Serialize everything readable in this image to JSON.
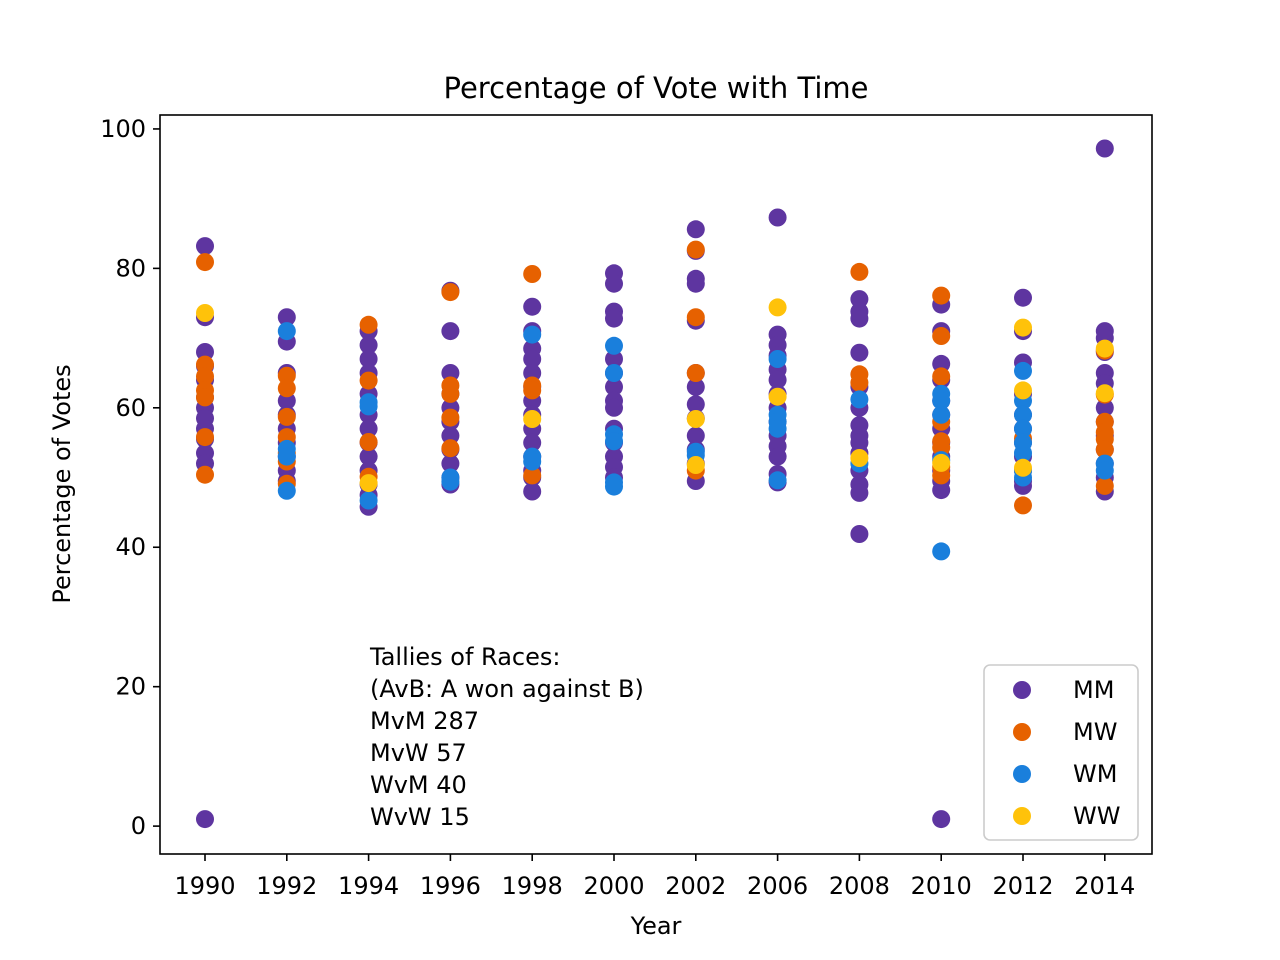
{
  "chart_data": {
    "type": "scatter",
    "title": "Percentage of Vote with Time",
    "xlabel": "Year",
    "ylabel": "Percentage of Votes",
    "categories": [
      "1990",
      "1992",
      "1994",
      "1996",
      "1998",
      "2000",
      "2002",
      "2006",
      "2008",
      "2010",
      "2012",
      "2014"
    ],
    "ylim": [
      -4,
      102
    ],
    "yticks": [
      0,
      20,
      40,
      60,
      80,
      100
    ],
    "grid": false,
    "legend_position": "lower-right",
    "series": [
      {
        "name": "MM",
        "color": "#5e35a0",
        "points": [
          [
            "1990",
            83.2
          ],
          [
            "1990",
            73.0
          ],
          [
            "1990",
            68.0
          ],
          [
            "1990",
            66.0
          ],
          [
            "1990",
            64.0
          ],
          [
            "1990",
            61.5
          ],
          [
            "1990",
            60.0
          ],
          [
            "1990",
            58.5
          ],
          [
            "1990",
            57.0
          ],
          [
            "1990",
            55.5
          ],
          [
            "1990",
            53.5
          ],
          [
            "1990",
            52.0
          ],
          [
            "1990",
            1.0
          ],
          [
            "1992",
            73.0
          ],
          [
            "1992",
            69.5
          ],
          [
            "1992",
            65.0
          ],
          [
            "1992",
            61.0
          ],
          [
            "1992",
            59.0
          ],
          [
            "1992",
            57.0
          ],
          [
            "1992",
            55.0
          ],
          [
            "1992",
            53.0
          ],
          [
            "1992",
            51.0
          ],
          [
            "1992",
            49.5
          ],
          [
            "1994",
            71.0
          ],
          [
            "1994",
            69.0
          ],
          [
            "1994",
            67.0
          ],
          [
            "1994",
            65.0
          ],
          [
            "1994",
            62.0
          ],
          [
            "1994",
            59.0
          ],
          [
            "1994",
            57.0
          ],
          [
            "1994",
            55.0
          ],
          [
            "1994",
            53.0
          ],
          [
            "1994",
            51.0
          ],
          [
            "1994",
            49.0
          ],
          [
            "1994",
            47.5
          ],
          [
            "1994",
            45.8
          ],
          [
            "1996",
            76.8
          ],
          [
            "1996",
            71.0
          ],
          [
            "1996",
            65.0
          ],
          [
            "1996",
            62.0
          ],
          [
            "1996",
            60.0
          ],
          [
            "1996",
            58.0
          ],
          [
            "1996",
            56.0
          ],
          [
            "1996",
            54.0
          ],
          [
            "1996",
            52.0
          ],
          [
            "1996",
            50.0
          ],
          [
            "1996",
            49.0
          ],
          [
            "1998",
            74.5
          ],
          [
            "1998",
            71.0
          ],
          [
            "1998",
            68.5
          ],
          [
            "1998",
            67.0
          ],
          [
            "1998",
            65.0
          ],
          [
            "1998",
            63.0
          ],
          [
            "1998",
            61.0
          ],
          [
            "1998",
            59.0
          ],
          [
            "1998",
            57.0
          ],
          [
            "1998",
            55.0
          ],
          [
            "1998",
            53.0
          ],
          [
            "1998",
            51.0
          ],
          [
            "1998",
            50.0
          ],
          [
            "1998",
            48.0
          ],
          [
            "2000",
            79.3
          ],
          [
            "2000",
            77.8
          ],
          [
            "2000",
            73.8
          ],
          [
            "2000",
            72.8
          ],
          [
            "2000",
            67.0
          ],
          [
            "2000",
            65.0
          ],
          [
            "2000",
            63.0
          ],
          [
            "2000",
            61.0
          ],
          [
            "2000",
            60.0
          ],
          [
            "2000",
            57.0
          ],
          [
            "2000",
            55.0
          ],
          [
            "2000",
            53.0
          ],
          [
            "2000",
            51.5
          ],
          [
            "2000",
            50.0
          ],
          [
            "2002",
            85.6
          ],
          [
            "2002",
            82.5
          ],
          [
            "2002",
            78.5
          ],
          [
            "2002",
            77.8
          ],
          [
            "2002",
            72.5
          ],
          [
            "2002",
            65.0
          ],
          [
            "2002",
            63.0
          ],
          [
            "2002",
            60.5
          ],
          [
            "2002",
            58.5
          ],
          [
            "2002",
            56.0
          ],
          [
            "2002",
            54.0
          ],
          [
            "2002",
            52.0
          ],
          [
            "2002",
            49.5
          ],
          [
            "2006",
            87.3
          ],
          [
            "2006",
            70.5
          ],
          [
            "2006",
            69.0
          ],
          [
            "2006",
            67.5
          ],
          [
            "2006",
            65.5
          ],
          [
            "2006",
            64.0
          ],
          [
            "2006",
            62.0
          ],
          [
            "2006",
            60.0
          ],
          [
            "2006",
            58.0
          ],
          [
            "2006",
            56.0
          ],
          [
            "2006",
            54.5
          ],
          [
            "2006",
            53.0
          ],
          [
            "2006",
            50.5
          ],
          [
            "2006",
            49.3
          ],
          [
            "2008",
            75.6
          ],
          [
            "2008",
            73.8
          ],
          [
            "2008",
            72.8
          ],
          [
            "2008",
            67.9
          ],
          [
            "2008",
            63.0
          ],
          [
            "2008",
            60.0
          ],
          [
            "2008",
            57.5
          ],
          [
            "2008",
            56.0
          ],
          [
            "2008",
            55.0
          ],
          [
            "2008",
            53.5
          ],
          [
            "2008",
            51.0
          ],
          [
            "2008",
            49.0
          ],
          [
            "2008",
            47.8
          ],
          [
            "2008",
            41.9
          ],
          [
            "2010",
            74.8
          ],
          [
            "2010",
            71.0
          ],
          [
            "2010",
            66.3
          ],
          [
            "2010",
            64.0
          ],
          [
            "2010",
            61.0
          ],
          [
            "2010",
            59.0
          ],
          [
            "2010",
            57.0
          ],
          [
            "2010",
            55.0
          ],
          [
            "2010",
            53.0
          ],
          [
            "2010",
            51.0
          ],
          [
            "2010",
            49.5
          ],
          [
            "2010",
            48.2
          ],
          [
            "2010",
            1.0
          ],
          [
            "2012",
            75.8
          ],
          [
            "2012",
            71.0
          ],
          [
            "2012",
            66.5
          ],
          [
            "2012",
            62.0
          ],
          [
            "2012",
            59.0
          ],
          [
            "2012",
            57.0
          ],
          [
            "2012",
            55.0
          ],
          [
            "2012",
            53.0
          ],
          [
            "2012",
            51.0
          ],
          [
            "2012",
            49.5
          ],
          [
            "2012",
            48.8
          ],
          [
            "2014",
            97.2
          ],
          [
            "2014",
            71.0
          ],
          [
            "2014",
            70.0
          ],
          [
            "2014",
            68.0
          ],
          [
            "2014",
            65.0
          ],
          [
            "2014",
            63.5
          ],
          [
            "2014",
            60.0
          ],
          [
            "2014",
            58.0
          ],
          [
            "2014",
            56.0
          ],
          [
            "2014",
            54.0
          ],
          [
            "2014",
            52.0
          ],
          [
            "2014",
            50.0
          ],
          [
            "2014",
            48.0
          ]
        ]
      },
      {
        "name": "MW",
        "color": "#e66100",
        "points": [
          [
            "1990",
            80.9
          ],
          [
            "1990",
            66.2
          ],
          [
            "1990",
            64.5
          ],
          [
            "1990",
            62.5
          ],
          [
            "1990",
            61.5
          ],
          [
            "1990",
            55.8
          ],
          [
            "1990",
            50.4
          ],
          [
            "1992",
            64.6
          ],
          [
            "1992",
            62.8
          ],
          [
            "1992",
            58.7
          ],
          [
            "1992",
            55.8
          ],
          [
            "1992",
            53.5
          ],
          [
            "1992",
            52.3
          ],
          [
            "1992",
            49.1
          ],
          [
            "1994",
            71.9
          ],
          [
            "1994",
            63.9
          ],
          [
            "1994",
            55.1
          ],
          [
            "1994",
            50.1
          ],
          [
            "1996",
            76.6
          ],
          [
            "1996",
            63.2
          ],
          [
            "1996",
            62.0
          ],
          [
            "1996",
            58.6
          ],
          [
            "1996",
            54.2
          ],
          [
            "1998",
            79.2
          ],
          [
            "1998",
            63.2
          ],
          [
            "1998",
            62.5
          ],
          [
            "1998",
            50.3
          ],
          [
            "2002",
            82.7
          ],
          [
            "2002",
            73.0
          ],
          [
            "2002",
            65.0
          ],
          [
            "2002",
            51.0
          ],
          [
            "2008",
            79.5
          ],
          [
            "2008",
            64.8
          ],
          [
            "2008",
            63.6
          ],
          [
            "2010",
            76.1
          ],
          [
            "2010",
            70.3
          ],
          [
            "2010",
            64.5
          ],
          [
            "2010",
            58.0
          ],
          [
            "2010",
            55.2
          ],
          [
            "2010",
            54.3
          ],
          [
            "2010",
            51.5
          ],
          [
            "2010",
            50.3
          ],
          [
            "2012",
            55.6
          ],
          [
            "2012",
            46.0
          ],
          [
            "2014",
            68.2
          ],
          [
            "2014",
            61.9
          ],
          [
            "2014",
            58.0
          ],
          [
            "2014",
            56.5
          ],
          [
            "2014",
            55.5
          ],
          [
            "2014",
            54.0
          ],
          [
            "2014",
            48.8
          ]
        ]
      },
      {
        "name": "WM",
        "color": "#1a7fdc",
        "points": [
          [
            "1992",
            71.0
          ],
          [
            "1992",
            54.1
          ],
          [
            "1992",
            53.0
          ],
          [
            "1992",
            48.1
          ],
          [
            "1994",
            60.8
          ],
          [
            "1994",
            60.2
          ],
          [
            "1994",
            46.7
          ],
          [
            "1996",
            50.0
          ],
          [
            "1996",
            49.4
          ],
          [
            "1998",
            70.5
          ],
          [
            "1998",
            53.0
          ],
          [
            "1998",
            52.3
          ],
          [
            "2000",
            68.9
          ],
          [
            "2000",
            65.0
          ],
          [
            "2000",
            56.2
          ],
          [
            "2000",
            55.2
          ],
          [
            "2000",
            49.3
          ],
          [
            "2000",
            48.7
          ],
          [
            "2002",
            53.7
          ],
          [
            "2002",
            53.2
          ],
          [
            "2006",
            67.0
          ],
          [
            "2006",
            59.0
          ],
          [
            "2006",
            58.0
          ],
          [
            "2006",
            57.0
          ],
          [
            "2006",
            49.6
          ],
          [
            "2008",
            61.2
          ],
          [
            "2008",
            52.0
          ],
          [
            "2010",
            62.0
          ],
          [
            "2010",
            61.0
          ],
          [
            "2010",
            59.0
          ],
          [
            "2010",
            52.5
          ],
          [
            "2010",
            39.4
          ],
          [
            "2012",
            65.3
          ],
          [
            "2012",
            61.0
          ],
          [
            "2012",
            59.0
          ],
          [
            "2012",
            57.0
          ],
          [
            "2012",
            55.0
          ],
          [
            "2012",
            53.5
          ],
          [
            "2012",
            51.0
          ],
          [
            "2012",
            50.0
          ],
          [
            "2014",
            52.0
          ],
          [
            "2014",
            51.0
          ]
        ]
      },
      {
        "name": "WW",
        "color": "#ffc20a",
        "points": [
          [
            "1990",
            73.6
          ],
          [
            "1994",
            49.2
          ],
          [
            "1998",
            58.4
          ],
          [
            "2002",
            58.4
          ],
          [
            "2002",
            51.8
          ],
          [
            "2006",
            74.4
          ],
          [
            "2006",
            61.6
          ],
          [
            "2008",
            52.8
          ],
          [
            "2010",
            52.1
          ],
          [
            "2012",
            71.5
          ],
          [
            "2012",
            62.5
          ],
          [
            "2012",
            51.4
          ],
          [
            "2014",
            68.5
          ],
          [
            "2014",
            62.1
          ]
        ]
      }
    ],
    "annotation": [
      "Tallies of Races:",
      "(AvB: A won against B)",
      "MvM 287",
      "MvW 57",
      "WvM 40",
      "WvW 15"
    ]
  }
}
